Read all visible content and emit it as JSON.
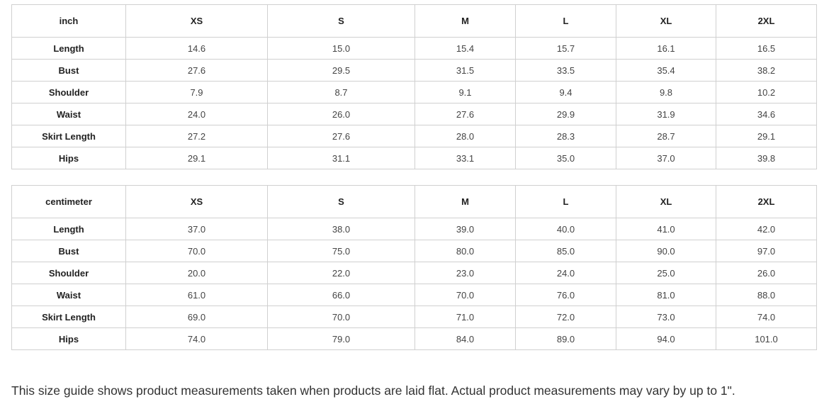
{
  "tables": [
    {
      "unit": "inch",
      "sizes": [
        "XS",
        "S",
        "M",
        "L",
        "XL",
        "2XL"
      ],
      "rows": [
        {
          "label": "Length",
          "values": [
            "14.6",
            "15.0",
            "15.4",
            "15.7",
            "16.1",
            "16.5"
          ]
        },
        {
          "label": "Bust",
          "values": [
            "27.6",
            "29.5",
            "31.5",
            "33.5",
            "35.4",
            "38.2"
          ]
        },
        {
          "label": "Shoulder",
          "values": [
            "7.9",
            "8.7",
            "9.1",
            "9.4",
            "9.8",
            "10.2"
          ]
        },
        {
          "label": "Waist",
          "values": [
            "24.0",
            "26.0",
            "27.6",
            "29.9",
            "31.9",
            "34.6"
          ]
        },
        {
          "label": "Skirt Length",
          "values": [
            "27.2",
            "27.6",
            "28.0",
            "28.3",
            "28.7",
            "29.1"
          ]
        },
        {
          "label": "Hips",
          "values": [
            "29.1",
            "31.1",
            "33.1",
            "35.0",
            "37.0",
            "39.8"
          ]
        }
      ]
    },
    {
      "unit": "centimeter",
      "sizes": [
        "XS",
        "S",
        "M",
        "L",
        "XL",
        "2XL"
      ],
      "rows": [
        {
          "label": "Length",
          "values": [
            "37.0",
            "38.0",
            "39.0",
            "40.0",
            "41.0",
            "42.0"
          ]
        },
        {
          "label": "Bust",
          "values": [
            "70.0",
            "75.0",
            "80.0",
            "85.0",
            "90.0",
            "97.0"
          ]
        },
        {
          "label": "Shoulder",
          "values": [
            "20.0",
            "22.0",
            "23.0",
            "24.0",
            "25.0",
            "26.0"
          ]
        },
        {
          "label": "Waist",
          "values": [
            "61.0",
            "66.0",
            "70.0",
            "76.0",
            "81.0",
            "88.0"
          ]
        },
        {
          "label": "Skirt Length",
          "values": [
            "69.0",
            "70.0",
            "71.0",
            "72.0",
            "73.0",
            "74.0"
          ]
        },
        {
          "label": "Hips",
          "values": [
            "74.0",
            "79.0",
            "84.0",
            "89.0",
            "94.0",
            "101.0"
          ]
        }
      ]
    }
  ],
  "note": "This size guide shows product measurements taken when products are laid flat. Actual product measurements may vary by up to 1\"."
}
